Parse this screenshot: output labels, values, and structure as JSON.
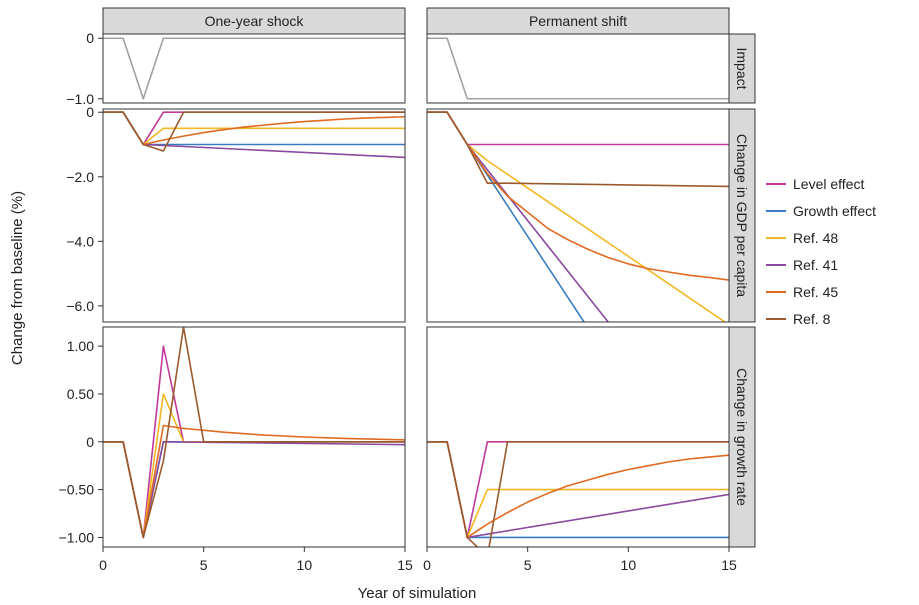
{
  "chart_data": {
    "type": "line",
    "ylabel": "Change from baseline (%)",
    "xlabel": "Year of simulation",
    "columns": [
      "One-year shock",
      "Permanent shift"
    ],
    "rows": [
      "Impact",
      "Change in GDP per capita",
      "Change in growth rate"
    ],
    "xlim": [
      0,
      15
    ],
    "xticks": [
      {
        "value": 0,
        "label": "0"
      },
      {
        "value": 5,
        "label": "5"
      },
      {
        "value": 10,
        "label": "10"
      },
      {
        "value": 15,
        "label": "15"
      }
    ],
    "row_scales": [
      {
        "ylim": [
          -1.07,
          0.07
        ],
        "ticks": [
          {
            "value": 0,
            "label": "0"
          },
          {
            "value": -1,
            "label": "−1.0"
          }
        ]
      },
      {
        "ylim": [
          -6.5,
          0.1
        ],
        "ticks": [
          {
            "value": 0,
            "label": "0"
          },
          {
            "value": -2,
            "label": "−2.0"
          },
          {
            "value": -4,
            "label": "−4.0"
          },
          {
            "value": -6,
            "label": "−6.0"
          }
        ]
      },
      {
        "ylim": [
          -1.1,
          1.2
        ],
        "ticks": [
          {
            "value": 1,
            "label": "1.00"
          },
          {
            "value": 0.5,
            "label": "0.50"
          },
          {
            "value": 0,
            "label": "0"
          },
          {
            "value": -0.5,
            "label": "−0.50"
          },
          {
            "value": -1,
            "label": "−1.00"
          }
        ]
      }
    ],
    "impact_color": "#a0a0a0",
    "legend": [
      {
        "name": "Level effect",
        "color": "#c0399a"
      },
      {
        "name": "Growth effect",
        "color": "#3a7dbf"
      },
      {
        "name": "Ref. 48",
        "color": "#f2b824"
      },
      {
        "name": "Ref. 41",
        "color": "#8a4a9e"
      },
      {
        "name": "Ref. 45",
        "color": "#e06a20"
      },
      {
        "name": "Ref. 8",
        "color": "#9a5a2e"
      }
    ],
    "panels": [
      {
        "column": "One-year shock",
        "row": "Impact",
        "series": [
          {
            "name": "Impact",
            "color": "#a0a0a0",
            "points": [
              [
                0,
                0
              ],
              [
                1,
                0
              ],
              [
                2,
                -1
              ],
              [
                3,
                0
              ],
              [
                15,
                0
              ]
            ]
          }
        ]
      },
      {
        "column": "Permanent shift",
        "row": "Impact",
        "series": [
          {
            "name": "Impact",
            "color": "#a0a0a0",
            "points": [
              [
                0,
                0
              ],
              [
                1,
                0
              ],
              [
                2,
                -1
              ],
              [
                15,
                -1
              ]
            ]
          }
        ]
      },
      {
        "column": "One-year shock",
        "row": "Change in GDP per capita",
        "series": [
          {
            "name": "Level effect",
            "color": "#c0399a",
            "points": [
              [
                0,
                0
              ],
              [
                1,
                0
              ],
              [
                2,
                -1
              ],
              [
                3,
                0
              ],
              [
                15,
                0
              ]
            ]
          },
          {
            "name": "Growth effect",
            "color": "#3a7dbf",
            "points": [
              [
                0,
                0
              ],
              [
                1,
                0
              ],
              [
                2,
                -1
              ],
              [
                15,
                -1
              ]
            ]
          },
          {
            "name": "Ref. 48",
            "color": "#f2b824",
            "points": [
              [
                0,
                0
              ],
              [
                1,
                0
              ],
              [
                2,
                -1
              ],
              [
                3,
                -0.5
              ],
              [
                15,
                -0.5
              ]
            ]
          },
          {
            "name": "Ref. 41",
            "color": "#8a4a9e",
            "points": [
              [
                0,
                0
              ],
              [
                1,
                0
              ],
              [
                2,
                -1
              ],
              [
                15,
                -1.4
              ]
            ]
          },
          {
            "name": "Ref. 45",
            "color": "#e06a20",
            "points": [
              [
                0,
                0
              ],
              [
                1,
                0
              ],
              [
                2,
                -1
              ],
              [
                3,
                -0.86
              ],
              [
                4,
                -0.74
              ],
              [
                5,
                -0.63
              ],
              [
                6,
                -0.54
              ],
              [
                7,
                -0.46
              ],
              [
                8,
                -0.4
              ],
              [
                9,
                -0.34
              ],
              [
                10,
                -0.29
              ],
              [
                11,
                -0.25
              ],
              [
                12,
                -0.21
              ],
              [
                13,
                -0.18
              ],
              [
                14,
                -0.16
              ],
              [
                15,
                -0.14
              ]
            ]
          },
          {
            "name": "Ref. 8",
            "color": "#9a5a2e",
            "points": [
              [
                0,
                0
              ],
              [
                1,
                0
              ],
              [
                2,
                -1
              ],
              [
                3,
                -1.2
              ],
              [
                4,
                0
              ],
              [
                15,
                0
              ]
            ]
          }
        ]
      },
      {
        "column": "Permanent shift",
        "row": "Change in GDP per capita",
        "series": [
          {
            "name": "Level effect",
            "color": "#c0399a",
            "points": [
              [
                0,
                0
              ],
              [
                1,
                0
              ],
              [
                2,
                -1
              ],
              [
                15,
                -1
              ]
            ]
          },
          {
            "name": "Growth effect",
            "color": "#3a7dbf",
            "points": [
              [
                0,
                0
              ],
              [
                1,
                0
              ],
              [
                2,
                -1
              ],
              [
                7.8,
                -6.5
              ]
            ]
          },
          {
            "name": "Ref. 48",
            "color": "#f2b824",
            "points": [
              [
                0,
                0
              ],
              [
                1,
                0
              ],
              [
                2,
                -1
              ],
              [
                3,
                -1.5
              ],
              [
                14.8,
                -6.5
              ]
            ]
          },
          {
            "name": "Ref. 41",
            "color": "#8a4a9e",
            "points": [
              [
                0,
                0
              ],
              [
                1,
                0
              ],
              [
                2,
                -1
              ],
              [
                9,
                -6.5
              ]
            ]
          },
          {
            "name": "Ref. 45",
            "color": "#e06a20",
            "points": [
              [
                0,
                0
              ],
              [
                1,
                0
              ],
              [
                2,
                -1
              ],
              [
                3,
                -1.9
              ],
              [
                4,
                -2.6
              ],
              [
                5,
                -3.1
              ],
              [
                6,
                -3.6
              ],
              [
                7,
                -3.95
              ],
              [
                8,
                -4.25
              ],
              [
                9,
                -4.5
              ],
              [
                10,
                -4.7
              ],
              [
                11,
                -4.85
              ],
              [
                12,
                -4.95
              ],
              [
                13,
                -5.05
              ],
              [
                14,
                -5.12
              ],
              [
                15,
                -5.2
              ]
            ]
          },
          {
            "name": "Ref. 8",
            "color": "#9a5a2e",
            "points": [
              [
                0,
                0
              ],
              [
                1,
                0
              ],
              [
                2,
                -1
              ],
              [
                3,
                -2.2
              ],
              [
                4,
                -2.2
              ],
              [
                15,
                -2.3
              ]
            ]
          }
        ]
      },
      {
        "column": "One-year shock",
        "row": "Change in growth rate",
        "series": [
          {
            "name": "Level effect",
            "color": "#c0399a",
            "points": [
              [
                0,
                0
              ],
              [
                1,
                0
              ],
              [
                2,
                -1
              ],
              [
                3,
                1
              ],
              [
                4,
                0
              ],
              [
                15,
                0
              ]
            ]
          },
          {
            "name": "Growth effect",
            "color": "#3a7dbf",
            "points": [
              [
                0,
                0
              ],
              [
                1,
                0
              ],
              [
                2,
                -1
              ],
              [
                3,
                0
              ],
              [
                15,
                0
              ]
            ]
          },
          {
            "name": "Ref. 48",
            "color": "#f2b824",
            "points": [
              [
                0,
                0
              ],
              [
                1,
                0
              ],
              [
                2,
                -1
              ],
              [
                3,
                0.5
              ],
              [
                4,
                0
              ],
              [
                15,
                0
              ]
            ]
          },
          {
            "name": "Ref. 41",
            "color": "#8a4a9e",
            "points": [
              [
                0,
                0
              ],
              [
                1,
                0
              ],
              [
                2,
                -1
              ],
              [
                3,
                0
              ],
              [
                15,
                -0.03
              ]
            ]
          },
          {
            "name": "Ref. 45",
            "color": "#e06a20",
            "points": [
              [
                0,
                0
              ],
              [
                1,
                0
              ],
              [
                2,
                -1
              ],
              [
                3,
                0.17
              ],
              [
                4,
                0.14
              ],
              [
                6,
                0.1
              ],
              [
                8,
                0.07
              ],
              [
                10,
                0.05
              ],
              [
                12,
                0.035
              ],
              [
                15,
                0.02
              ]
            ]
          },
          {
            "name": "Ref. 8",
            "color": "#9a5a2e",
            "points": [
              [
                0,
                0
              ],
              [
                1,
                0
              ],
              [
                2,
                -1
              ],
              [
                3,
                -0.2
              ],
              [
                4,
                1.2
              ],
              [
                5,
                0
              ],
              [
                15,
                0
              ]
            ]
          }
        ]
      },
      {
        "column": "Permanent shift",
        "row": "Change in growth rate",
        "series": [
          {
            "name": "Level effect",
            "color": "#c0399a",
            "points": [
              [
                0,
                0
              ],
              [
                1,
                0
              ],
              [
                2,
                -1
              ],
              [
                3,
                0
              ],
              [
                15,
                0
              ]
            ]
          },
          {
            "name": "Growth effect",
            "color": "#3a7dbf",
            "points": [
              [
                0,
                0
              ],
              [
                1,
                0
              ],
              [
                2,
                -1
              ],
              [
                15,
                -1
              ]
            ]
          },
          {
            "name": "Ref. 48",
            "color": "#f2b824",
            "points": [
              [
                0,
                0
              ],
              [
                1,
                0
              ],
              [
                2,
                -1
              ],
              [
                3,
                -0.5
              ],
              [
                15,
                -0.5
              ]
            ]
          },
          {
            "name": "Ref. 41",
            "color": "#8a4a9e",
            "points": [
              [
                0,
                0
              ],
              [
                1,
                0
              ],
              [
                2,
                -1
              ],
              [
                15,
                -0.55
              ]
            ]
          },
          {
            "name": "Ref. 45",
            "color": "#e06a20",
            "points": [
              [
                0,
                0
              ],
              [
                1,
                0
              ],
              [
                2,
                -1
              ],
              [
                3,
                -0.86
              ],
              [
                4,
                -0.74
              ],
              [
                5,
                -0.63
              ],
              [
                6,
                -0.54
              ],
              [
                7,
                -0.46
              ],
              [
                8,
                -0.4
              ],
              [
                9,
                -0.34
              ],
              [
                10,
                -0.29
              ],
              [
                11,
                -0.25
              ],
              [
                12,
                -0.21
              ],
              [
                13,
                -0.18
              ],
              [
                14,
                -0.16
              ],
              [
                15,
                -0.14
              ]
            ]
          },
          {
            "name": "Ref. 8",
            "color": "#9a5a2e",
            "points": [
              [
                0,
                0
              ],
              [
                1,
                0
              ],
              [
                2,
                -1
              ],
              [
                3,
                -1.2
              ],
              [
                4,
                0
              ],
              [
                15,
                0
              ]
            ]
          }
        ]
      }
    ]
  }
}
